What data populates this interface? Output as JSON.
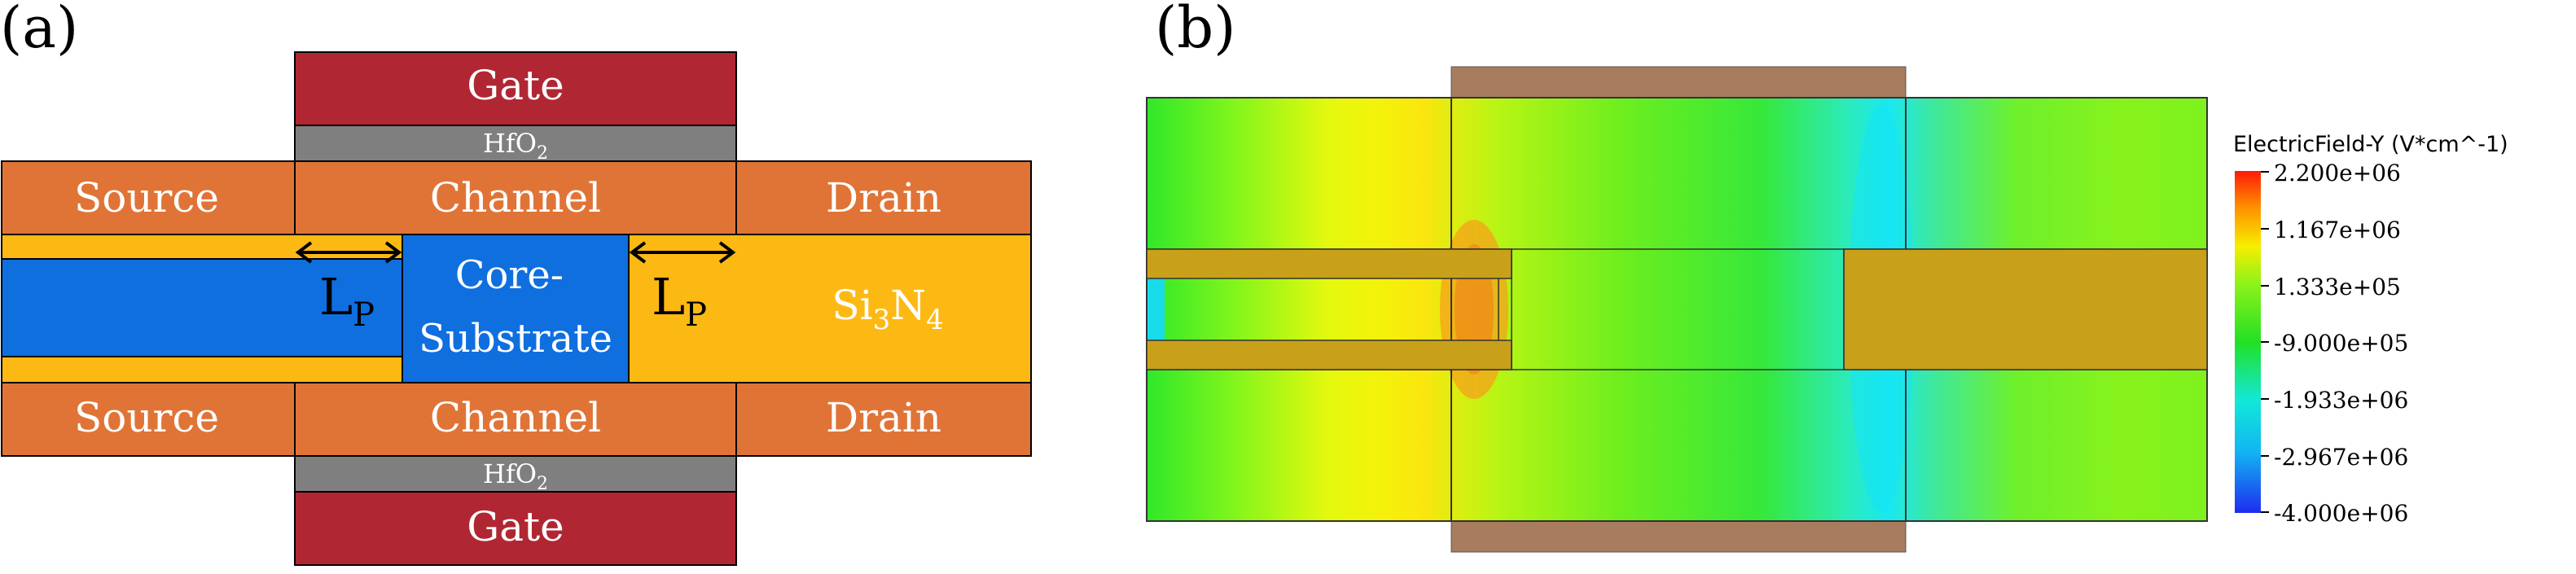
{
  "panel_a": {
    "label": "(a)",
    "gate_top": "Gate",
    "gate_bottom": "Gate",
    "oxide_top": {
      "main": "HfO",
      "sub": "2"
    },
    "oxide_bottom": {
      "main": "HfO",
      "sub": "2"
    },
    "source_top": "Source",
    "source_bottom": "Source",
    "channel_top": "Channel",
    "channel_bottom": "Channel",
    "drain_top": "Drain",
    "drain_bottom": "Drain",
    "core_line1": "Core-",
    "core_line2": "Substrate",
    "lp_left": {
      "main": "L",
      "sub": "P"
    },
    "lp_right": {
      "main": "L",
      "sub": "P"
    },
    "spacer": {
      "si": "Si",
      "n3": "3",
      "n": "N",
      "n4": "4"
    }
  },
  "panel_b": {
    "label": "(b)",
    "legend_title": "ElectricField-Y (V*cm^-1)",
    "legend_ticks": [
      "2.200e+06",
      "1.167e+06",
      "1.333e+05",
      "-9.000e+05",
      "-1.933e+06",
      "-2.967e+06",
      "-4.000e+06"
    ]
  },
  "colors": {
    "gate": "#b02733",
    "oxide": "#7f7f7f",
    "source_drain_channel": "#e07437",
    "core": "#0f6fdf",
    "spacer": "#fdb913",
    "sim_metal": "#a87c5f",
    "sim_core": "#c9a01a"
  }
}
